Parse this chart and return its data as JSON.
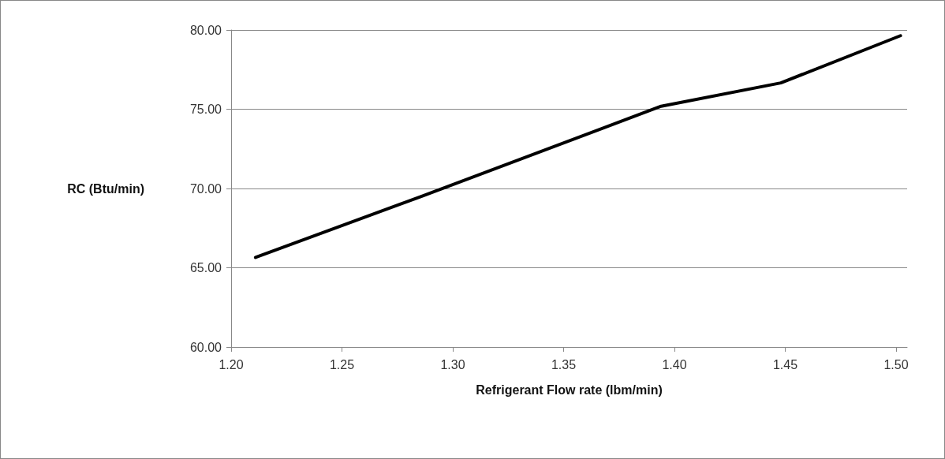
{
  "chart_data": {
    "type": "line",
    "xlabel": "Refrigerant Flow rate (lbm/min)",
    "ylabel": "RC (Btu/min)",
    "x": [
      1.211,
      1.286,
      1.394,
      1.448,
      1.502
    ],
    "series": [
      {
        "color": "#000000",
        "values": [
          65.65,
          69.51,
          75.19,
          76.66,
          79.64
        ]
      }
    ],
    "xlim": [
      1.2,
      1.505
    ],
    "xticks": [
      {
        "value": 1.2,
        "label": "1.20"
      },
      {
        "value": 1.25,
        "label": "1.25"
      },
      {
        "value": 1.3,
        "label": "1.30"
      },
      {
        "value": 1.35,
        "label": "1.35"
      },
      {
        "value": 1.4,
        "label": "1.40"
      },
      {
        "value": 1.45,
        "label": "1.45"
      },
      {
        "value": 1.5,
        "label": "1.50"
      }
    ],
    "ylim": [
      60,
      80
    ],
    "yticks": [
      {
        "value": 60,
        "label": "60.00"
      },
      {
        "value": 65,
        "label": "65.00"
      },
      {
        "value": 70,
        "label": "70.00"
      },
      {
        "value": 75,
        "label": "75.00"
      },
      {
        "value": 80,
        "label": "80.00"
      }
    ],
    "grid": "y",
    "marker": "none",
    "line_style": "solid"
  }
}
